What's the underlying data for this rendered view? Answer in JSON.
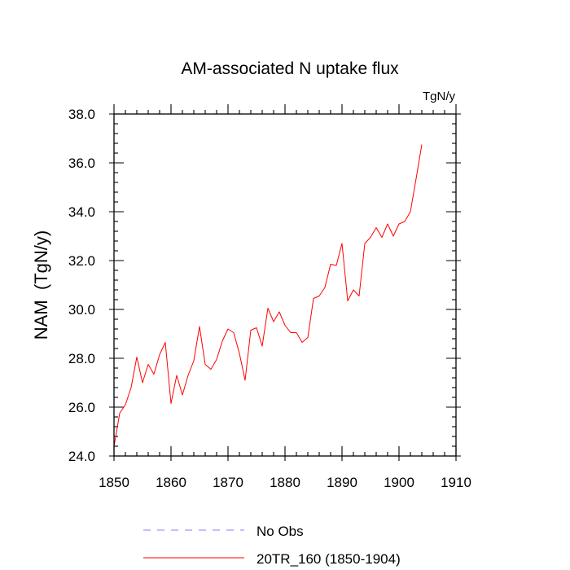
{
  "chart_data": {
    "type": "line",
    "title": "AM-associated N uptake flux",
    "units_label": "TgN/y",
    "xlabel": "",
    "ylabel": "NAM  (TgN/y)",
    "xlim": [
      1850,
      1910
    ],
    "ylim": [
      24.0,
      38.0
    ],
    "x_ticks": [
      1850,
      1860,
      1870,
      1880,
      1890,
      1900,
      1910
    ],
    "x_tick_labels": [
      "1850",
      "1860",
      "1870",
      "1880",
      "1890",
      "1900",
      "1910"
    ],
    "y_ticks": [
      24.0,
      26.0,
      28.0,
      30.0,
      32.0,
      34.0,
      36.0,
      38.0
    ],
    "y_tick_labels": [
      "24.0",
      "26.0",
      "28.0",
      "30.0",
      "32.0",
      "34.0",
      "36.0",
      "38.0"
    ],
    "grid": false,
    "legend_position": "bottom",
    "series": [
      {
        "name": "No Obs",
        "color": "#8080ff",
        "style": "dashed",
        "x": [],
        "values": []
      },
      {
        "name": "20TR_160 (1850-1904)",
        "color": "#ff0000",
        "style": "solid",
        "x": [
          1850,
          1851,
          1852,
          1853,
          1854,
          1855,
          1856,
          1857,
          1858,
          1859,
          1860,
          1861,
          1862,
          1863,
          1864,
          1865,
          1866,
          1867,
          1868,
          1869,
          1870,
          1871,
          1872,
          1873,
          1874,
          1875,
          1876,
          1877,
          1878,
          1879,
          1880,
          1881,
          1882,
          1883,
          1884,
          1885,
          1886,
          1887,
          1888,
          1889,
          1890,
          1891,
          1892,
          1893,
          1894,
          1895,
          1896,
          1897,
          1898,
          1899,
          1900,
          1901,
          1902,
          1903,
          1904
        ],
        "values": [
          24.4,
          25.75,
          26.1,
          26.8,
          28.05,
          27.0,
          27.75,
          27.35,
          28.15,
          28.65,
          26.15,
          27.3,
          26.5,
          27.3,
          27.9,
          29.3,
          27.75,
          27.55,
          27.95,
          28.7,
          29.2,
          29.05,
          28.2,
          27.1,
          29.15,
          29.25,
          28.5,
          30.05,
          29.5,
          29.9,
          29.35,
          29.05,
          29.05,
          28.65,
          28.85,
          30.45,
          30.55,
          30.9,
          31.85,
          31.8,
          32.7,
          30.35,
          30.8,
          30.55,
          32.7,
          32.95,
          33.35,
          32.95,
          33.5,
          33.0,
          33.5,
          33.6,
          34.0,
          35.35,
          36.75
        ]
      }
    ]
  }
}
